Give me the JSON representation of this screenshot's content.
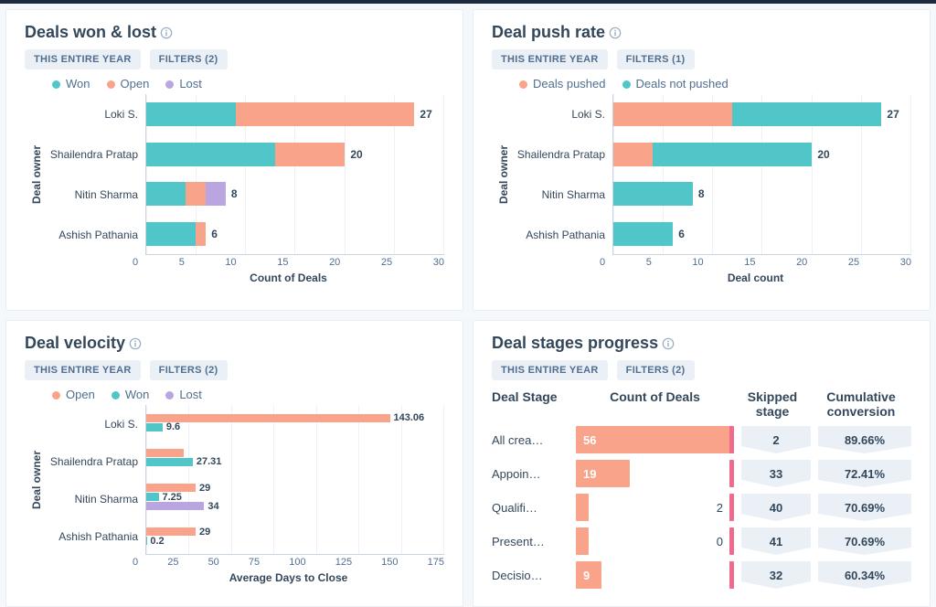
{
  "colors": {
    "teal": "#51c6c8",
    "salmon": "#f9a38a",
    "purple": "#b9a5df",
    "text": "#33475b",
    "pink_tick": "#f06b8b",
    "chevron_bg": "#eaf0f6"
  },
  "cards": {
    "won_lost": {
      "title": "Deals won & lost",
      "period": "THIS ENTIRE YEAR",
      "filters": "FILTERS (2)",
      "legend": [
        {
          "label": "Won",
          "color": "#51c6c8"
        },
        {
          "label": "Open",
          "color": "#f9a38a"
        },
        {
          "label": "Lost",
          "color": "#b9a5df"
        }
      ],
      "ylabel": "Deal owner",
      "xlabel": "Count of Deals",
      "xmax": 30,
      "xticks": [
        "0",
        "5",
        "10",
        "15",
        "20",
        "25",
        "30"
      ],
      "rows": [
        {
          "name": "Loki S.",
          "segments": [
            {
              "v": 9,
              "c": "#51c6c8"
            },
            {
              "v": 18,
              "c": "#f9a38a"
            }
          ],
          "total": "27"
        },
        {
          "name": "Shailendra Pratap",
          "segments": [
            {
              "v": 13,
              "c": "#51c6c8"
            },
            {
              "v": 7,
              "c": "#f9a38a"
            }
          ],
          "total": "20"
        },
        {
          "name": "Nitin Sharma",
          "segments": [
            {
              "v": 4,
              "c": "#51c6c8"
            },
            {
              "v": 2,
              "c": "#f9a38a"
            },
            {
              "v": 2,
              "c": "#b9a5df"
            }
          ],
          "total": "8"
        },
        {
          "name": "Ashish Pathania",
          "segments": [
            {
              "v": 5,
              "c": "#51c6c8"
            },
            {
              "v": 1,
              "c": "#f9a38a"
            }
          ],
          "total": "6"
        }
      ]
    },
    "push_rate": {
      "title": "Deal push rate",
      "period": "THIS ENTIRE YEAR",
      "filters": "FILTERS (1)",
      "legend": [
        {
          "label": "Deals pushed",
          "color": "#f9a38a"
        },
        {
          "label": "Deals not pushed",
          "color": "#51c6c8"
        }
      ],
      "ylabel": "Deal owner",
      "xlabel": "Deal count",
      "xmax": 30,
      "xticks": [
        "0",
        "5",
        "10",
        "15",
        "20",
        "25",
        "30"
      ],
      "rows": [
        {
          "name": "Loki S.",
          "segments": [
            {
              "v": 12,
              "c": "#f9a38a"
            },
            {
              "v": 15,
              "c": "#51c6c8"
            }
          ],
          "total": "27"
        },
        {
          "name": "Shailendra Pratap",
          "segments": [
            {
              "v": 4,
              "c": "#f9a38a"
            },
            {
              "v": 16,
              "c": "#51c6c8"
            }
          ],
          "total": "20"
        },
        {
          "name": "Nitin Sharma",
          "segments": [
            {
              "v": 8,
              "c": "#51c6c8"
            }
          ],
          "total": "8"
        },
        {
          "name": "Ashish Pathania",
          "segments": [
            {
              "v": 6,
              "c": "#51c6c8"
            }
          ],
          "total": "6"
        }
      ]
    },
    "velocity": {
      "title": "Deal velocity",
      "period": "THIS ENTIRE YEAR",
      "filters": "FILTERS (2)",
      "legend": [
        {
          "label": "Open",
          "color": "#f9a38a"
        },
        {
          "label": "Won",
          "color": "#51c6c8"
        },
        {
          "label": "Lost",
          "color": "#b9a5df"
        }
      ],
      "ylabel": "Deal owner",
      "xlabel": "Average Days to Close",
      "xmax": 175,
      "xticks": [
        "0",
        "25",
        "50",
        "75",
        "100",
        "125",
        "150",
        "175"
      ],
      "rows": [
        {
          "name": "Loki S.",
          "bars": [
            {
              "v": 143.06,
              "c": "#f9a38a",
              "label": "143.06"
            },
            {
              "v": 9.6,
              "c": "#51c6c8",
              "label": "9.6"
            }
          ]
        },
        {
          "name": "Shailendra Pratap",
          "bars": [
            {
              "v": 22,
              "c": "#f9a38a",
              "label": ""
            },
            {
              "v": 27.31,
              "c": "#51c6c8",
              "label": "27.31"
            }
          ]
        },
        {
          "name": "Nitin Sharma",
          "bars": [
            {
              "v": 29,
              "c": "#f9a38a",
              "label": "29"
            },
            {
              "v": 7.25,
              "c": "#51c6c8",
              "label": "7.25"
            },
            {
              "v": 34,
              "c": "#b9a5df",
              "label": "34"
            }
          ]
        },
        {
          "name": "Ashish Pathania",
          "bars": [
            {
              "v": 29,
              "c": "#f9a38a",
              "label": "29"
            },
            {
              "v": 0.2,
              "c": "#51c6c8",
              "label": "0.2"
            }
          ]
        }
      ]
    },
    "stages": {
      "title": "Deal stages progress",
      "period": "THIS ENTIRE YEAR",
      "filters": "FILTERS (2)",
      "headers": {
        "stage": "Deal Stage",
        "count": "Count of Deals",
        "skipped": "Skipped stage",
        "conv": "Cumulative conversion"
      },
      "max": 56,
      "bar_color": "#f9a38a",
      "tick_color": "#f06b8b",
      "rows": [
        {
          "stage": "All crea…",
          "count": 56,
          "count_label": "56",
          "skipped": "2",
          "conv": "89.66%"
        },
        {
          "stage": "Appoin…",
          "count": 19,
          "count_label": "19",
          "skipped": "33",
          "conv": "72.41%"
        },
        {
          "stage": "Qualifi…",
          "count": 2,
          "count_label": "2",
          "skipped": "40",
          "conv": "70.69%"
        },
        {
          "stage": "Present…",
          "count": 0,
          "count_label": "0",
          "skipped": "41",
          "conv": "70.69%"
        },
        {
          "stage": "Decisio…",
          "count": 9,
          "count_label": "9",
          "skipped": "32",
          "conv": "60.34%"
        }
      ]
    }
  }
}
